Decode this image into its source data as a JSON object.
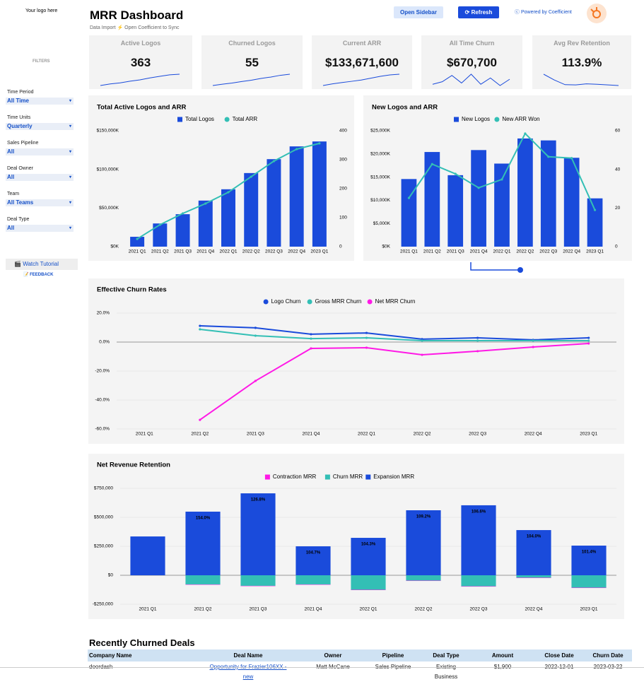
{
  "header": {
    "logo": "Your logo here",
    "title": "MRR Dashboard",
    "subtitle": "Data Import ⚡ Open Coefficient to Sync",
    "open_sidebar": "Open Sidebar",
    "refresh": "Refresh",
    "powered_by": "Powered by Coefficient"
  },
  "sidebar": {
    "heading": "FILTERS",
    "filters": [
      {
        "label": "Time Period",
        "value": "All Time"
      },
      {
        "label": "Time Units",
        "value": "Quarterly"
      },
      {
        "label": "Sales Pipeline",
        "value": "All"
      },
      {
        "label": "Deal Owner",
        "value": "All"
      },
      {
        "label": "Team",
        "value": "All Teams"
      },
      {
        "label": "Deal Type",
        "value": "All"
      }
    ],
    "tutorial": "Watch Tutorial",
    "feedback": "FEEDBACK"
  },
  "kpis": [
    {
      "label": "Active Logos",
      "value": "363",
      "sparkline": [
        34,
        80,
        112,
        159,
        198,
        254,
        302,
        346,
        363
      ]
    },
    {
      "label": "Churned Logos",
      "value": "55",
      "sparkline": [
        4,
        10,
        15,
        22,
        28,
        36,
        42,
        50,
        55
      ]
    },
    {
      "label": "Current ARR",
      "value": "$133,671,600",
      "sparkline": [
        10,
        28,
        43,
        56,
        70,
        90,
        111,
        126,
        134
      ]
    },
    {
      "label": "All Time Churn",
      "value": "$670,700",
      "sparkline": [
        1,
        3,
        8,
        2,
        9,
        1,
        6,
        0,
        5
      ]
    },
    {
      "label": "Avg Rev Retention",
      "value": "113.9%",
      "sparkline": [
        154,
        127,
        105,
        104,
        109,
        107,
        104,
        101
      ]
    }
  ],
  "chart_data": [
    {
      "type": "combo",
      "title": "Total Active Logos and ARR",
      "categories": [
        "2021 Q1",
        "2021 Q2",
        "2021 Q3",
        "2021 Q4",
        "2022 Q1",
        "2022 Q2",
        "2022 Q3",
        "2022 Q4",
        "2023 Q1"
      ],
      "series": [
        {
          "name": "Total Logos",
          "type": "bar",
          "axis": "y2",
          "color": "#1a4bdb",
          "values": [
            34,
            80,
            112,
            159,
            198,
            254,
            302,
            346,
            363
          ]
        },
        {
          "name": "Total ARR",
          "type": "line",
          "color": "#33bfb5",
          "values": [
            10000000,
            28400000,
            43000000,
            55800000,
            70400000,
            90500000,
            110700000,
            126200000,
            133671600
          ]
        }
      ],
      "ylim": [
        0,
        150000000
      ],
      "yticks": [
        {
          "value": 0,
          "label": "$0K"
        },
        {
          "value": 50000000,
          "label": "$50,000K"
        },
        {
          "value": 100000000,
          "label": "$100,000K"
        },
        {
          "value": 150000000,
          "label": "$150,000K"
        }
      ],
      "y2lim": [
        0,
        400
      ],
      "y2ticks": [
        0,
        100,
        200,
        300,
        400
      ],
      "grid": false,
      "legend": "top"
    },
    {
      "type": "combo",
      "title": "New Logos and ARR",
      "categories": [
        "2021 Q1",
        "2021 Q2",
        "2021 Q3",
        "2021 Q4",
        "2022 Q1",
        "2022 Q2",
        "2022 Q3",
        "2022 Q4",
        "2023 Q1"
      ],
      "series": [
        {
          "name": "New Logos",
          "type": "bar",
          "axis": "y2",
          "color": "#1a4bdb",
          "values": [
            35,
            49,
            37,
            50,
            43,
            56,
            55,
            46,
            25
          ]
        },
        {
          "name": "New ARR Won",
          "type": "line",
          "color": "#33bfb5",
          "values": [
            10500000,
            17800000,
            15700000,
            12700000,
            14500000,
            24400000,
            19400000,
            19100000,
            7900000
          ]
        }
      ],
      "ylim": [
        0,
        25000000
      ],
      "yticks": [
        {
          "value": 0,
          "label": "$0K"
        },
        {
          "value": 5000000,
          "label": "$5,000K"
        },
        {
          "value": 10000000,
          "label": "$10,000K"
        },
        {
          "value": 15000000,
          "label": "$15,000K"
        },
        {
          "value": 20000000,
          "label": "$20,000K"
        },
        {
          "value": 25000000,
          "label": "$25,000K"
        }
      ],
      "y2lim": [
        0,
        60
      ],
      "y2ticks": [
        0,
        20,
        40,
        60
      ],
      "grid": false,
      "legend": "top"
    },
    {
      "type": "line",
      "title": "Effective Churn Rates",
      "categories": [
        "2021 Q1",
        "2021 Q2",
        "2021 Q3",
        "2021 Q4",
        "2022 Q1",
        "2022 Q2",
        "2022 Q3",
        "2022 Q4",
        "2023 Q1"
      ],
      "series": [
        {
          "name": "Logo Churn",
          "color": "#1a4bdb",
          "values": [
            null,
            11.2,
            9.8,
            5.4,
            6.3,
            2.0,
            2.9,
            1.5,
            2.9
          ]
        },
        {
          "name": "Gross MRR Churn",
          "color": "#33bfb5",
          "values": [
            null,
            8.8,
            4.4,
            2.4,
            2.9,
            1.0,
            1.0,
            1.0,
            1.0
          ]
        },
        {
          "name": "Net MRR Churn",
          "color": "#ff19e6",
          "values": [
            null,
            -53.7,
            -26.8,
            -4.4,
            -3.9,
            -8.8,
            -6.3,
            -3.4,
            -1.0
          ]
        }
      ],
      "ylim": [
        -60,
        20
      ],
      "yticks": [
        {
          "value": 20,
          "label": "20.0%"
        },
        {
          "value": 0,
          "label": "0.0%"
        },
        {
          "value": -20,
          "label": "-20.0%"
        },
        {
          "value": -40,
          "label": "-40.0%"
        },
        {
          "value": -60,
          "label": "-60.0%"
        }
      ],
      "grid": true,
      "legend": "top"
    },
    {
      "type": "stacked_bar",
      "title": "Net Revenue Retention",
      "categories": [
        "2021 Q1",
        "2021 Q2",
        "2021 Q3",
        "2021 Q4",
        "2022 Q1",
        "2022 Q2",
        "2022 Q3",
        "2022 Q4",
        "2023 Q1"
      ],
      "series": [
        {
          "name": "Contraction MRR",
          "color": "#ff19e6",
          "values": [
            0,
            -3000,
            -3000,
            -3000,
            -3000,
            -3000,
            -3000,
            -3000,
            -3000
          ]
        },
        {
          "name": "Churn MRR",
          "color": "#33bfb5",
          "values": [
            0,
            -79000,
            -91000,
            -79000,
            -125000,
            -46000,
            -95000,
            -21000,
            -107000
          ]
        },
        {
          "name": "Expansion MRR",
          "color": "#1a4bdb",
          "values": [
            335000,
            549000,
            707000,
            250000,
            323000,
            561000,
            604000,
            390000,
            256000
          ]
        }
      ],
      "bar_labels": [
        null,
        "154.0%",
        "126.8%",
        "104.7%",
        "104.3%",
        "109.2%",
        "106.6%",
        "104.0%",
        "101.4%"
      ],
      "ylim": [
        -250000,
        750000
      ],
      "yticks": [
        {
          "value": 750000,
          "label": "$750,000"
        },
        {
          "value": 500000,
          "label": "$500,000"
        },
        {
          "value": 250000,
          "label": "$250,000"
        },
        {
          "value": 0,
          "label": "$0"
        },
        {
          "value": -250000,
          "label": "-$250,000"
        }
      ],
      "grid": true,
      "legend": "top"
    }
  ],
  "table": {
    "title": "Recently Churned Deals",
    "columns": [
      "Company Name",
      "Deal Name",
      "Owner",
      "Pipeline",
      "Deal Type",
      "Amount",
      "Close Date",
      "Churn Date"
    ],
    "rows": [
      [
        "doordash",
        "Opportunity for Frazier106XX - new",
        "Matt McCane",
        "Sales Pipeline",
        "Existing Business",
        "$1,900",
        "2022-12-01",
        "2023-03-22"
      ]
    ]
  }
}
